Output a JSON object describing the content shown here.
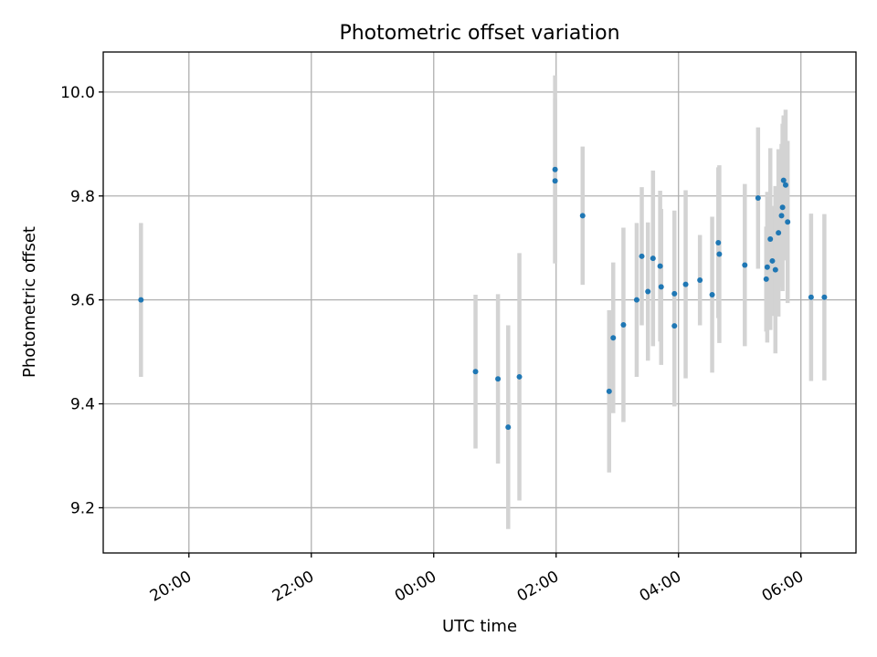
{
  "chart_data": {
    "type": "scatter",
    "title": "Photometric offset variation",
    "xlabel": "UTC time",
    "ylabel": "Photometric offset",
    "x_is_time": true,
    "xlim": [
      "18:36",
      "06:54"
    ],
    "ylim": [
      9.113,
      10.077
    ],
    "grid": true,
    "colors": {
      "marker": "#1f77b4",
      "errorbar": "#d3d3d3"
    },
    "x_ticks": [
      "20:00",
      "22:00",
      "00:00",
      "02:00",
      "04:00",
      "06:00"
    ],
    "y_ticks": [
      "9.2",
      "9.4",
      "9.6",
      "9.8",
      "10.0"
    ],
    "points": [
      {
        "t": "19:13",
        "y": 9.6,
        "err": 0.148
      },
      {
        "t": "00:41",
        "y": 9.462,
        "err": 0.148
      },
      {
        "t": "01:03",
        "y": 9.448,
        "err": 0.163
      },
      {
        "t": "01:13",
        "y": 9.355,
        "err": 0.196
      },
      {
        "t": "01:24",
        "y": 9.452,
        "err": 0.238
      },
      {
        "t": "01:59",
        "y": 9.851,
        "err": 0.181
      },
      {
        "t": "01:59",
        "y": 9.829,
        "err": 0.158
      },
      {
        "t": "02:26",
        "y": 9.762,
        "err": 0.133
      },
      {
        "t": "02:52",
        "y": 9.424,
        "err": 0.156
      },
      {
        "t": "02:56",
        "y": 9.527,
        "err": 0.145
      },
      {
        "t": "03:06",
        "y": 9.552,
        "err": 0.187
      },
      {
        "t": "03:19",
        "y": 9.6,
        "err": 0.148
      },
      {
        "t": "03:24",
        "y": 9.684,
        "err": 0.133
      },
      {
        "t": "03:30",
        "y": 9.616,
        "err": 0.133
      },
      {
        "t": "03:35",
        "y": 9.68,
        "err": 0.169
      },
      {
        "t": "03:42",
        "y": 9.665,
        "err": 0.145
      },
      {
        "t": "03:43",
        "y": 9.625,
        "err": 0.15
      },
      {
        "t": "03:56",
        "y": 9.612,
        "err": 0.16
      },
      {
        "t": "03:56",
        "y": 9.55,
        "err": 0.155
      },
      {
        "t": "04:07",
        "y": 9.63,
        "err": 0.181
      },
      {
        "t": "04:21",
        "y": 9.638,
        "err": 0.087
      },
      {
        "t": "04:33",
        "y": 9.61,
        "err": 0.15
      },
      {
        "t": "04:39",
        "y": 9.71,
        "err": 0.145
      },
      {
        "t": "04:40",
        "y": 9.688,
        "err": 0.171
      },
      {
        "t": "05:05",
        "y": 9.667,
        "err": 0.156
      },
      {
        "t": "05:18",
        "y": 9.796,
        "err": 0.136
      },
      {
        "t": "05:26",
        "y": 9.64,
        "err": 0.101
      },
      {
        "t": "05:27",
        "y": 9.663,
        "err": 0.145
      },
      {
        "t": "05:30",
        "y": 9.717,
        "err": 0.175
      },
      {
        "t": "05:32",
        "y": 9.675,
        "err": 0.106
      },
      {
        "t": "05:35",
        "y": 9.658,
        "err": 0.161
      },
      {
        "t": "05:38",
        "y": 9.729,
        "err": 0.161
      },
      {
        "t": "05:41",
        "y": 9.762,
        "err": 0.138
      },
      {
        "t": "05:42",
        "y": 9.778,
        "err": 0.161
      },
      {
        "t": "05:43",
        "y": 9.83,
        "err": 0.125
      },
      {
        "t": "05:45",
        "y": 9.821,
        "err": 0.145
      },
      {
        "t": "05:47",
        "y": 9.75,
        "err": 0.156
      },
      {
        "t": "06:10",
        "y": 9.605,
        "err": 0.161
      },
      {
        "t": "06:23",
        "y": 9.605,
        "err": 0.16
      }
    ]
  }
}
